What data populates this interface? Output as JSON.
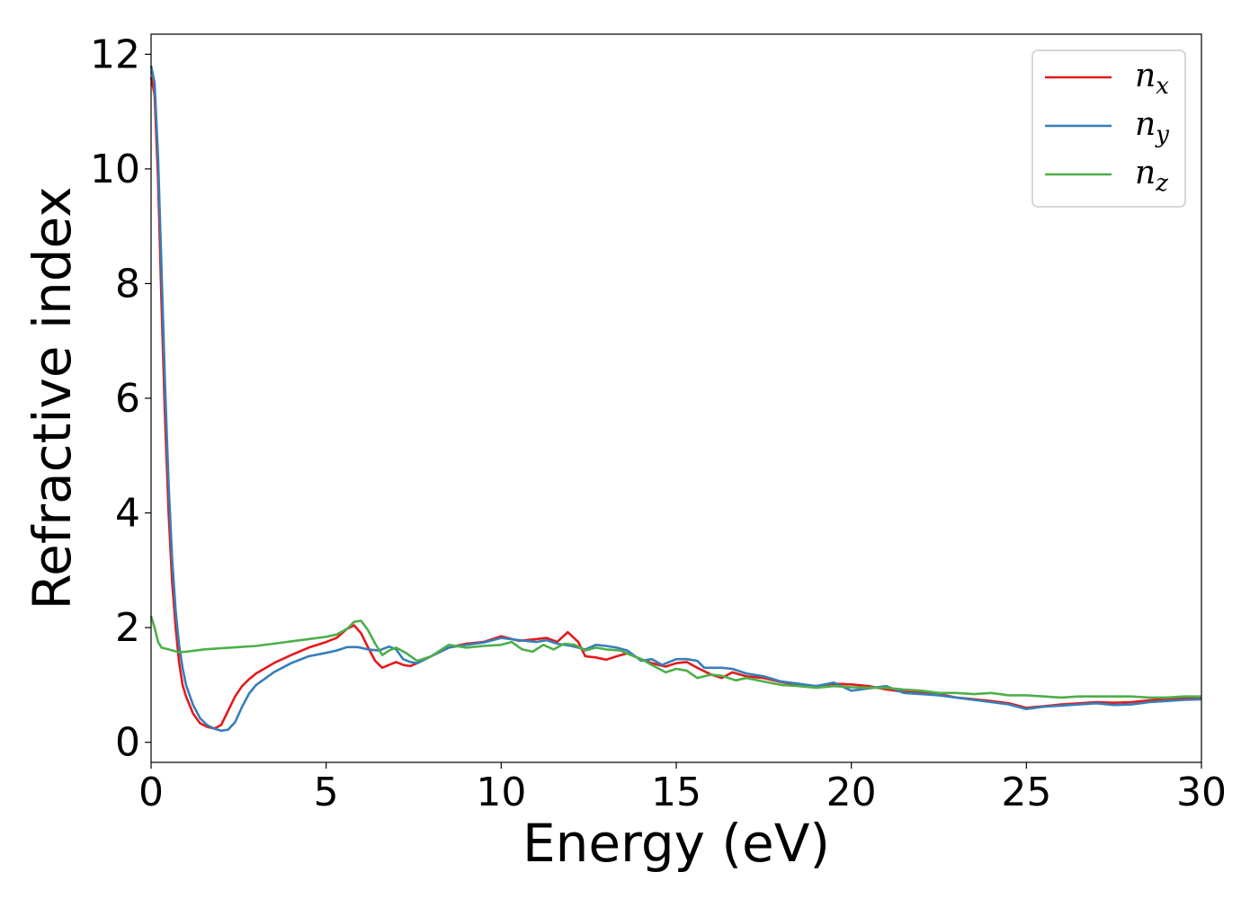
{
  "chart_data": {
    "type": "line",
    "xlabel": "Energy (eV)",
    "ylabel": "Refractive index",
    "xlim": [
      0,
      30
    ],
    "ylim": [
      -0.35,
      12.35
    ],
    "xticks": [
      0,
      5,
      10,
      15,
      20,
      25,
      30
    ],
    "xtick_labels": [
      "0",
      "5",
      "10",
      "15",
      "20",
      "25",
      "30"
    ],
    "yticks": [
      0,
      2,
      4,
      6,
      8,
      10,
      12
    ],
    "ytick_labels": [
      "0",
      "2",
      "4",
      "6",
      "8",
      "10",
      "12"
    ],
    "grid": false,
    "legend_position": "top-right",
    "series": [
      {
        "name": "n_x",
        "label_base": "n",
        "label_sub": "x",
        "color": "#e41a1c",
        "points": [
          [
            0,
            11.6
          ],
          [
            0.1,
            11.3
          ],
          [
            0.2,
            9.8
          ],
          [
            0.3,
            7.6
          ],
          [
            0.4,
            5.6
          ],
          [
            0.5,
            4.0
          ],
          [
            0.6,
            2.8
          ],
          [
            0.7,
            2.0
          ],
          [
            0.8,
            1.4
          ],
          [
            0.9,
            1.0
          ],
          [
            1.0,
            0.8
          ],
          [
            1.2,
            0.5
          ],
          [
            1.4,
            0.33
          ],
          [
            1.6,
            0.27
          ],
          [
            1.8,
            0.24
          ],
          [
            2.0,
            0.3
          ],
          [
            2.2,
            0.55
          ],
          [
            2.4,
            0.8
          ],
          [
            2.6,
            0.98
          ],
          [
            2.8,
            1.1
          ],
          [
            3.0,
            1.2
          ],
          [
            3.5,
            1.38
          ],
          [
            4.0,
            1.52
          ],
          [
            4.5,
            1.65
          ],
          [
            5.0,
            1.75
          ],
          [
            5.3,
            1.82
          ],
          [
            5.6,
            1.98
          ],
          [
            5.8,
            2.04
          ],
          [
            6.0,
            1.9
          ],
          [
            6.2,
            1.65
          ],
          [
            6.4,
            1.42
          ],
          [
            6.6,
            1.3
          ],
          [
            6.8,
            1.35
          ],
          [
            7.0,
            1.4
          ],
          [
            7.2,
            1.35
          ],
          [
            7.4,
            1.33
          ],
          [
            7.6,
            1.38
          ],
          [
            8.0,
            1.5
          ],
          [
            8.5,
            1.65
          ],
          [
            9.0,
            1.72
          ],
          [
            9.5,
            1.75
          ],
          [
            10.0,
            1.85
          ],
          [
            10.5,
            1.77
          ],
          [
            11.0,
            1.8
          ],
          [
            11.3,
            1.82
          ],
          [
            11.6,
            1.75
          ],
          [
            11.9,
            1.92
          ],
          [
            12.2,
            1.75
          ],
          [
            12.4,
            1.5
          ],
          [
            12.7,
            1.48
          ],
          [
            13.0,
            1.44
          ],
          [
            13.3,
            1.5
          ],
          [
            13.6,
            1.55
          ],
          [
            14.0,
            1.45
          ],
          [
            14.3,
            1.38
          ],
          [
            14.7,
            1.32
          ],
          [
            15.0,
            1.38
          ],
          [
            15.3,
            1.4
          ],
          [
            15.6,
            1.3
          ],
          [
            16.0,
            1.18
          ],
          [
            16.3,
            1.12
          ],
          [
            16.6,
            1.22
          ],
          [
            17.0,
            1.15
          ],
          [
            17.5,
            1.12
          ],
          [
            18.0,
            1.05
          ],
          [
            18.5,
            1.0
          ],
          [
            19.0,
            0.98
          ],
          [
            19.5,
            1.02
          ],
          [
            20.0,
            1.01
          ],
          [
            20.5,
            0.98
          ],
          [
            21.0,
            0.92
          ],
          [
            21.5,
            0.88
          ],
          [
            22.0,
            0.86
          ],
          [
            22.5,
            0.84
          ],
          [
            23.0,
            0.78
          ],
          [
            23.5,
            0.75
          ],
          [
            24.0,
            0.72
          ],
          [
            24.5,
            0.68
          ],
          [
            25.0,
            0.6
          ],
          [
            25.5,
            0.63
          ],
          [
            26.0,
            0.66
          ],
          [
            26.5,
            0.68
          ],
          [
            27.0,
            0.7
          ],
          [
            27.5,
            0.69
          ],
          [
            28.0,
            0.7
          ],
          [
            28.5,
            0.73
          ],
          [
            29.0,
            0.76
          ],
          [
            29.5,
            0.77
          ],
          [
            30.0,
            0.78
          ]
        ]
      },
      {
        "name": "n_y",
        "label_base": "n",
        "label_sub": "y",
        "color": "#377eb8",
        "points": [
          [
            0,
            11.8
          ],
          [
            0.1,
            11.5
          ],
          [
            0.2,
            10.2
          ],
          [
            0.3,
            8.2
          ],
          [
            0.4,
            6.2
          ],
          [
            0.5,
            4.5
          ],
          [
            0.6,
            3.2
          ],
          [
            0.7,
            2.3
          ],
          [
            0.8,
            1.7
          ],
          [
            0.9,
            1.3
          ],
          [
            1.0,
            1.0
          ],
          [
            1.2,
            0.65
          ],
          [
            1.4,
            0.42
          ],
          [
            1.6,
            0.3
          ],
          [
            1.8,
            0.24
          ],
          [
            2.0,
            0.2
          ],
          [
            2.2,
            0.22
          ],
          [
            2.4,
            0.35
          ],
          [
            2.6,
            0.62
          ],
          [
            2.8,
            0.85
          ],
          [
            3.0,
            1.0
          ],
          [
            3.5,
            1.22
          ],
          [
            4.0,
            1.38
          ],
          [
            4.5,
            1.5
          ],
          [
            5.0,
            1.56
          ],
          [
            5.3,
            1.6
          ],
          [
            5.6,
            1.66
          ],
          [
            5.9,
            1.66
          ],
          [
            6.2,
            1.62
          ],
          [
            6.5,
            1.6
          ],
          [
            6.8,
            1.67
          ],
          [
            7.0,
            1.62
          ],
          [
            7.2,
            1.45
          ],
          [
            7.4,
            1.4
          ],
          [
            7.6,
            1.38
          ],
          [
            8.0,
            1.5
          ],
          [
            8.5,
            1.65
          ],
          [
            9.0,
            1.7
          ],
          [
            9.5,
            1.74
          ],
          [
            10.0,
            1.82
          ],
          [
            10.5,
            1.78
          ],
          [
            11.0,
            1.75
          ],
          [
            11.3,
            1.78
          ],
          [
            11.6,
            1.72
          ],
          [
            12.0,
            1.68
          ],
          [
            12.4,
            1.62
          ],
          [
            12.7,
            1.7
          ],
          [
            13.0,
            1.68
          ],
          [
            13.3,
            1.65
          ],
          [
            13.6,
            1.6
          ],
          [
            14.0,
            1.42
          ],
          [
            14.3,
            1.45
          ],
          [
            14.6,
            1.35
          ],
          [
            15.0,
            1.45
          ],
          [
            15.3,
            1.45
          ],
          [
            15.6,
            1.42
          ],
          [
            15.8,
            1.3
          ],
          [
            16.3,
            1.3
          ],
          [
            16.6,
            1.28
          ],
          [
            17.0,
            1.2
          ],
          [
            17.5,
            1.15
          ],
          [
            18.0,
            1.06
          ],
          [
            18.5,
            1.02
          ],
          [
            19.0,
            0.98
          ],
          [
            19.5,
            1.04
          ],
          [
            20.0,
            0.9
          ],
          [
            20.5,
            0.94
          ],
          [
            21.0,
            0.98
          ],
          [
            21.5,
            0.86
          ],
          [
            22.0,
            0.84
          ],
          [
            22.5,
            0.82
          ],
          [
            23.0,
            0.78
          ],
          [
            23.5,
            0.74
          ],
          [
            24.0,
            0.7
          ],
          [
            24.5,
            0.66
          ],
          [
            25.0,
            0.58
          ],
          [
            25.5,
            0.62
          ],
          [
            26.0,
            0.64
          ],
          [
            26.5,
            0.66
          ],
          [
            27.0,
            0.68
          ],
          [
            27.5,
            0.65
          ],
          [
            28.0,
            0.66
          ],
          [
            28.5,
            0.7
          ],
          [
            29.0,
            0.72
          ],
          [
            29.5,
            0.74
          ],
          [
            30.0,
            0.75
          ]
        ]
      },
      {
        "name": "n_z",
        "label_base": "n",
        "label_sub": "z",
        "color": "#4daf4a",
        "points": [
          [
            0,
            2.2
          ],
          [
            0.1,
            2.0
          ],
          [
            0.2,
            1.75
          ],
          [
            0.3,
            1.65
          ],
          [
            0.5,
            1.62
          ],
          [
            0.8,
            1.57
          ],
          [
            1.0,
            1.58
          ],
          [
            1.5,
            1.62
          ],
          [
            2.0,
            1.64
          ],
          [
            2.5,
            1.66
          ],
          [
            3.0,
            1.68
          ],
          [
            3.5,
            1.72
          ],
          [
            4.0,
            1.76
          ],
          [
            4.5,
            1.8
          ],
          [
            5.0,
            1.84
          ],
          [
            5.3,
            1.88
          ],
          [
            5.6,
            1.98
          ],
          [
            5.8,
            2.1
          ],
          [
            6.0,
            2.12
          ],
          [
            6.2,
            1.95
          ],
          [
            6.4,
            1.72
          ],
          [
            6.6,
            1.52
          ],
          [
            6.8,
            1.6
          ],
          [
            7.0,
            1.65
          ],
          [
            7.3,
            1.55
          ],
          [
            7.6,
            1.42
          ],
          [
            8.0,
            1.5
          ],
          [
            8.5,
            1.7
          ],
          [
            9.0,
            1.65
          ],
          [
            9.5,
            1.68
          ],
          [
            10.0,
            1.7
          ],
          [
            10.3,
            1.75
          ],
          [
            10.6,
            1.62
          ],
          [
            10.9,
            1.58
          ],
          [
            11.2,
            1.7
          ],
          [
            11.5,
            1.62
          ],
          [
            11.8,
            1.72
          ],
          [
            12.1,
            1.7
          ],
          [
            12.4,
            1.6
          ],
          [
            12.7,
            1.65
          ],
          [
            13.0,
            1.62
          ],
          [
            13.4,
            1.6
          ],
          [
            13.7,
            1.52
          ],
          [
            14.0,
            1.45
          ],
          [
            14.3,
            1.35
          ],
          [
            14.7,
            1.22
          ],
          [
            15.0,
            1.28
          ],
          [
            15.3,
            1.25
          ],
          [
            15.6,
            1.12
          ],
          [
            16.0,
            1.18
          ],
          [
            16.3,
            1.16
          ],
          [
            16.7,
            1.08
          ],
          [
            17.0,
            1.12
          ],
          [
            17.5,
            1.06
          ],
          [
            18.0,
            1.0
          ],
          [
            18.5,
            0.98
          ],
          [
            19.0,
            0.95
          ],
          [
            19.5,
            0.98
          ],
          [
            20.0,
            0.96
          ],
          [
            20.5,
            0.95
          ],
          [
            21.0,
            0.95
          ],
          [
            21.5,
            0.92
          ],
          [
            22.0,
            0.9
          ],
          [
            22.5,
            0.86
          ],
          [
            23.0,
            0.86
          ],
          [
            23.5,
            0.84
          ],
          [
            24.0,
            0.86
          ],
          [
            24.5,
            0.82
          ],
          [
            25.0,
            0.82
          ],
          [
            25.5,
            0.8
          ],
          [
            26.0,
            0.78
          ],
          [
            26.5,
            0.8
          ],
          [
            27.0,
            0.8
          ],
          [
            27.5,
            0.8
          ],
          [
            28.0,
            0.8
          ],
          [
            28.5,
            0.78
          ],
          [
            29.0,
            0.78
          ],
          [
            29.5,
            0.8
          ],
          [
            30.0,
            0.8
          ]
        ]
      }
    ]
  }
}
